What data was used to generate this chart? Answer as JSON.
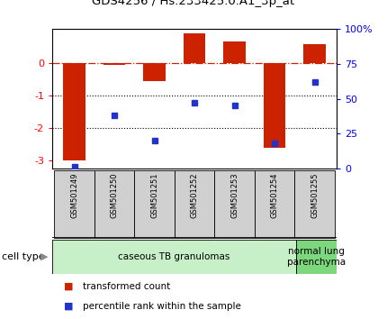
{
  "title": "GDS4256 / Hs.233425.0.A1_3p_at",
  "samples": [
    "GSM501249",
    "GSM501250",
    "GSM501251",
    "GSM501252",
    "GSM501253",
    "GSM501254",
    "GSM501255"
  ],
  "red_values": [
    -3.0,
    -0.05,
    -0.55,
    0.92,
    0.65,
    -2.6,
    0.58
  ],
  "blue_values": [
    1.0,
    38.0,
    20.0,
    47.0,
    45.0,
    18.0,
    62.0
  ],
  "ylim_left": [
    -3.25,
    1.05
  ],
  "ylim_right": [
    0,
    100
  ],
  "yticks_left": [
    -3,
    -2,
    -1,
    0
  ],
  "ytick_labels_left": [
    "-3",
    "-2",
    "-1",
    "0"
  ],
  "yticks_right": [
    0,
    25,
    50,
    75,
    100
  ],
  "ytick_labels_right": [
    "0",
    "25",
    "50",
    "75",
    "100%"
  ],
  "dotted_lines": [
    -1,
    -2
  ],
  "cell_groups": [
    {
      "label": "caseous TB granulomas",
      "span": [
        0,
        6
      ],
      "color": "#c8f0c8"
    },
    {
      "label": "normal lung\nparenchyma",
      "span": [
        6,
        7
      ],
      "color": "#7dd87d"
    }
  ],
  "bar_color": "#cc2200",
  "dot_color": "#2233cc",
  "sample_box_color": "#d0d0d0",
  "legend_items": [
    {
      "color": "#cc2200",
      "label": "transformed count"
    },
    {
      "color": "#2233cc",
      "label": "percentile rank within the sample"
    }
  ]
}
